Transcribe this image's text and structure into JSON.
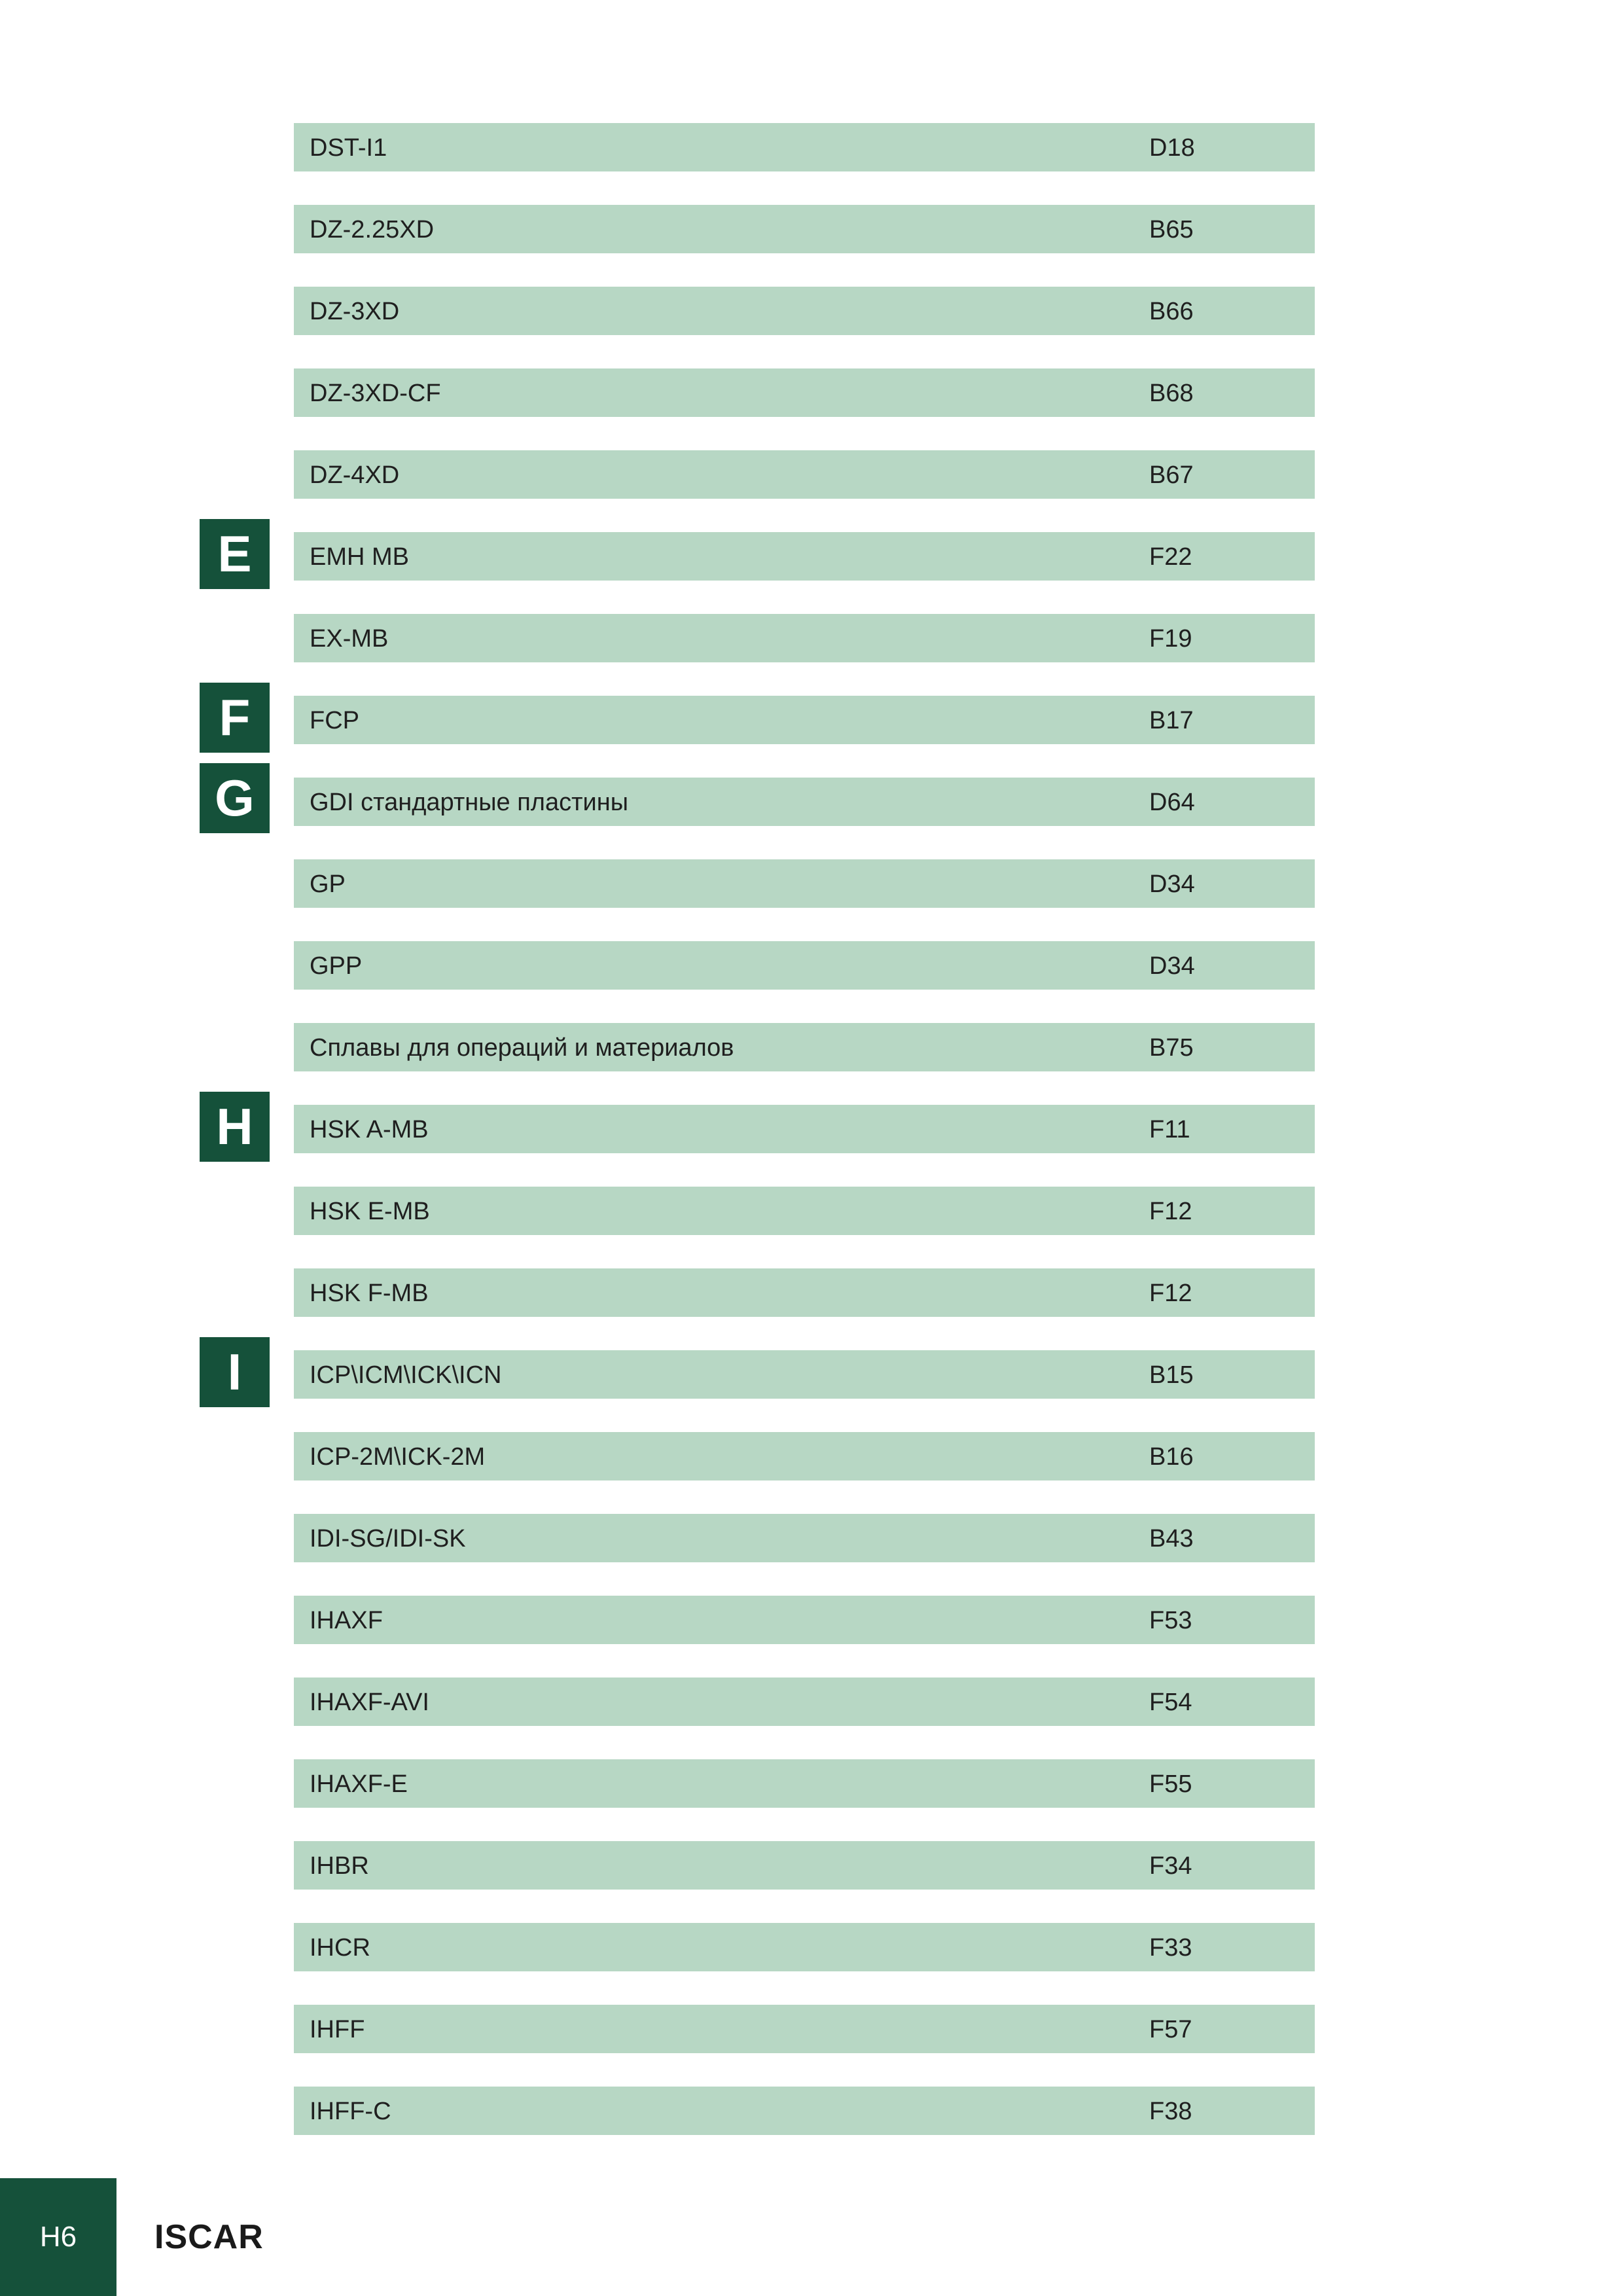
{
  "index_rows": [
    {
      "name": "DST-I1",
      "page": "D18"
    },
    {
      "name": "DZ-2.25XD",
      "page": "B65"
    },
    {
      "name": "DZ-3XD",
      "page": "B66"
    },
    {
      "name": "DZ-3XD-CF",
      "page": "B68"
    },
    {
      "name": "DZ-4XD",
      "page": "B67"
    },
    {
      "name": "EMH MB",
      "page": "F22"
    },
    {
      "name": "EX-MB",
      "page": "F19"
    },
    {
      "name": "FCP",
      "page": "B17"
    },
    {
      "name": "GDI стандартные пластины",
      "page": "D64"
    },
    {
      "name": "GP",
      "page": "D34"
    },
    {
      "name": "GPP",
      "page": "D34"
    },
    {
      "name": "Сплавы для операций и материалов",
      "page": "B75"
    },
    {
      "name": "HSK A-MB",
      "page": "F11"
    },
    {
      "name": "HSK E-MB",
      "page": "F12"
    },
    {
      "name": "HSK F-MB",
      "page": "F12"
    },
    {
      "name": "ICP\\ICM\\ICK\\ICN",
      "page": "B15"
    },
    {
      "name": "ICP-2M\\ICK-2M",
      "page": "B16"
    },
    {
      "name": "IDI-SG/IDI-SK",
      "page": "B43"
    },
    {
      "name": "IHAXF",
      "page": "F53"
    },
    {
      "name": "IHAXF-AVI",
      "page": "F54"
    },
    {
      "name": "IHAXF-E",
      "page": "F55"
    },
    {
      "name": "IHBR",
      "page": "F34"
    },
    {
      "name": "IHCR",
      "page": "F33"
    },
    {
      "name": "IHFF",
      "page": "F57"
    },
    {
      "name": "IHFF-C",
      "page": "F38"
    }
  ],
  "section_letters": {
    "e": "E",
    "f": "F",
    "g": "G",
    "h": "H",
    "i": "I"
  },
  "footer": {
    "page_number": "H6",
    "brand": "ISCAR"
  },
  "colors": {
    "row_background": "#b7d7c4",
    "accent_dark_green": "#15513a"
  }
}
